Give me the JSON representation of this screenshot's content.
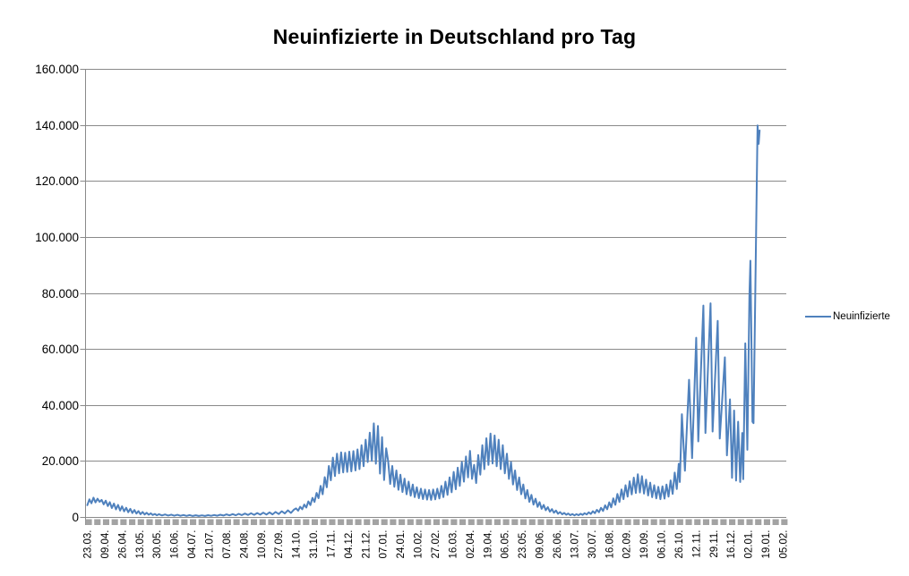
{
  "title": "Neuinfizierte in Deutschland pro Tag",
  "legend": {
    "series_label": "Neuinfizierte"
  },
  "colors": {
    "background": "#FFFFFF",
    "grid": "#8A8A8A",
    "axis": "#8A8A8A",
    "band_tick": "#A3A3A3",
    "series_line": "#4F81BD",
    "text": "#000000"
  },
  "chart_data": {
    "type": "line",
    "title": "Neuinfizierte in Deutschland pro Tag",
    "xlabel": "",
    "ylabel": "",
    "grid": "horizontal",
    "legend_position": "right",
    "ylim": [
      0,
      160000
    ],
    "y_ticks": [
      {
        "value": 0,
        "label": "0"
      },
      {
        "value": 20000,
        "label": "20.000"
      },
      {
        "value": 40000,
        "label": "40.000"
      },
      {
        "value": 60000,
        "label": "60.000"
      },
      {
        "value": 80000,
        "label": "80.000"
      },
      {
        "value": 100000,
        "label": "100.000"
      },
      {
        "value": 120000,
        "label": "120.000"
      },
      {
        "value": 140000,
        "label": "140.000"
      },
      {
        "value": 160000,
        "label": "160.000"
      }
    ],
    "x_label_interval_days": 17,
    "x_span_days": 680,
    "x_tick_labels": [
      "23.03.",
      "09.04.",
      "26.04.",
      "13.05.",
      "30.05.",
      "16.06.",
      "04.07.",
      "21.07.",
      "07.08.",
      "24.08.",
      "10.09.",
      "27.09.",
      "14.10.",
      "31.10.",
      "17.11.",
      "04.12.",
      "21.12.",
      "07.01.",
      "24.01.",
      "10.02.",
      "27.02.",
      "16.03.",
      "02.04.",
      "19.04.",
      "06.05.",
      "23.05.",
      "09.06.",
      "26.06.",
      "13.07.",
      "30.07.",
      "16.08.",
      "02.09.",
      "19.09.",
      "06.10.",
      "26.10.",
      "12.11.",
      "29.11.",
      "16.12.",
      "02.01.",
      "19.01.",
      "05.02."
    ],
    "series": [
      {
        "name": "Neuinfizierte",
        "color": "#4F81BD",
        "points": [
          [
            0,
            4200
          ],
          [
            2,
            6300
          ],
          [
            4,
            4900
          ],
          [
            6,
            6900
          ],
          [
            8,
            5200
          ],
          [
            10,
            6500
          ],
          [
            12,
            5400
          ],
          [
            14,
            6100
          ],
          [
            16,
            4500
          ],
          [
            18,
            5800
          ],
          [
            20,
            3900
          ],
          [
            22,
            5300
          ],
          [
            24,
            3200
          ],
          [
            26,
            4800
          ],
          [
            28,
            2700
          ],
          [
            30,
            4300
          ],
          [
            32,
            2300
          ],
          [
            34,
            3800
          ],
          [
            36,
            2000
          ],
          [
            38,
            3300
          ],
          [
            40,
            1700
          ],
          [
            42,
            2900
          ],
          [
            44,
            1400
          ],
          [
            46,
            2500
          ],
          [
            48,
            1200
          ],
          [
            50,
            2100
          ],
          [
            52,
            1000
          ],
          [
            54,
            1800
          ],
          [
            56,
            900
          ],
          [
            58,
            1500
          ],
          [
            60,
            800
          ],
          [
            62,
            1300
          ],
          [
            64,
            700
          ],
          [
            66,
            1100
          ],
          [
            68,
            600
          ],
          [
            70,
            1000
          ],
          [
            73,
            550
          ],
          [
            76,
            900
          ],
          [
            79,
            500
          ],
          [
            82,
            820
          ],
          [
            85,
            460
          ],
          [
            88,
            760
          ],
          [
            91,
            420
          ],
          [
            94,
            700
          ],
          [
            97,
            390
          ],
          [
            100,
            660
          ],
          [
            103,
            360
          ],
          [
            106,
            620
          ],
          [
            109,
            340
          ],
          [
            112,
            590
          ],
          [
            115,
            360
          ],
          [
            118,
            630
          ],
          [
            121,
            410
          ],
          [
            124,
            710
          ],
          [
            127,
            460
          ],
          [
            130,
            810
          ],
          [
            133,
            520
          ],
          [
            136,
            920
          ],
          [
            139,
            580
          ],
          [
            142,
            1020
          ],
          [
            145,
            620
          ],
          [
            148,
            1120
          ],
          [
            151,
            670
          ],
          [
            154,
            1220
          ],
          [
            157,
            720
          ],
          [
            160,
            1320
          ],
          [
            163,
            770
          ],
          [
            166,
            1420
          ],
          [
            169,
            820
          ],
          [
            172,
            1520
          ],
          [
            175,
            870
          ],
          [
            178,
            1620
          ],
          [
            181,
            930
          ],
          [
            184,
            1800
          ],
          [
            187,
            1050
          ],
          [
            190,
            2050
          ],
          [
            193,
            1250
          ],
          [
            196,
            2350
          ],
          [
            199,
            1450
          ],
          [
            202,
            2650
          ],
          [
            204,
            3050
          ],
          [
            206,
            2250
          ],
          [
            208,
            3650
          ],
          [
            210,
            2750
          ],
          [
            212,
            4450
          ],
          [
            214,
            3350
          ],
          [
            216,
            5550
          ],
          [
            218,
            4250
          ],
          [
            220,
            6850
          ],
          [
            222,
            5350
          ],
          [
            224,
            8600
          ],
          [
            226,
            6700
          ],
          [
            228,
            11100
          ],
          [
            230,
            8100
          ],
          [
            232,
            14200
          ],
          [
            234,
            10600
          ],
          [
            236,
            18200
          ],
          [
            238,
            13100
          ],
          [
            240,
            21200
          ],
          [
            242,
            14600
          ],
          [
            244,
            22600
          ],
          [
            246,
            15600
          ],
          [
            248,
            23100
          ],
          [
            250,
            15900
          ],
          [
            252,
            22900
          ],
          [
            254,
            16100
          ],
          [
            256,
            23300
          ],
          [
            258,
            16300
          ],
          [
            260,
            23500
          ],
          [
            262,
            16600
          ],
          [
            264,
            24100
          ],
          [
            266,
            17100
          ],
          [
            268,
            25600
          ],
          [
            270,
            18100
          ],
          [
            272,
            27600
          ],
          [
            274,
            19600
          ],
          [
            276,
            30100
          ],
          [
            278,
            20000
          ],
          [
            280,
            33400
          ],
          [
            282,
            19000
          ],
          [
            284,
            32500
          ],
          [
            286,
            15500
          ],
          [
            288,
            28500
          ],
          [
            290,
            13200
          ],
          [
            292,
            24500
          ],
          [
            294,
            20000
          ],
          [
            296,
            11800
          ],
          [
            298,
            18200
          ],
          [
            300,
            10800
          ],
          [
            302,
            16600
          ],
          [
            304,
            9700
          ],
          [
            306,
            15100
          ],
          [
            308,
            8900
          ],
          [
            310,
            13700
          ],
          [
            312,
            8100
          ],
          [
            314,
            12600
          ],
          [
            316,
            7600
          ],
          [
            318,
            11600
          ],
          [
            320,
            7100
          ],
          [
            322,
            10600
          ],
          [
            324,
            6700
          ],
          [
            326,
            10100
          ],
          [
            328,
            6400
          ],
          [
            330,
            9800
          ],
          [
            332,
            6200
          ],
          [
            334,
            9600
          ],
          [
            336,
            6100
          ],
          [
            338,
            9800
          ],
          [
            340,
            6300
          ],
          [
            342,
            10100
          ],
          [
            344,
            6600
          ],
          [
            346,
            11100
          ],
          [
            348,
            7100
          ],
          [
            350,
            12600
          ],
          [
            352,
            7900
          ],
          [
            354,
            14100
          ],
          [
            356,
            8800
          ],
          [
            358,
            16100
          ],
          [
            360,
            9900
          ],
          [
            362,
            17600
          ],
          [
            364,
            11100
          ],
          [
            366,
            19600
          ],
          [
            368,
            12600
          ],
          [
            370,
            21600
          ],
          [
            372,
            14100
          ],
          [
            374,
            23600
          ],
          [
            376,
            13600
          ],
          [
            378,
            18600
          ],
          [
            380,
            12100
          ],
          [
            382,
            22100
          ],
          [
            384,
            15100
          ],
          [
            386,
            25600
          ],
          [
            388,
            17100
          ],
          [
            390,
            28100
          ],
          [
            392,
            18600
          ],
          [
            394,
            29800
          ],
          [
            396,
            19100
          ],
          [
            398,
            29100
          ],
          [
            400,
            18100
          ],
          [
            402,
            27600
          ],
          [
            404,
            17100
          ],
          [
            406,
            25600
          ],
          [
            408,
            15600
          ],
          [
            410,
            22600
          ],
          [
            412,
            13600
          ],
          [
            414,
            19600
          ],
          [
            416,
            11600
          ],
          [
            418,
            16600
          ],
          [
            420,
            9600
          ],
          [
            422,
            14100
          ],
          [
            424,
            8100
          ],
          [
            426,
            11600
          ],
          [
            428,
            6600
          ],
          [
            430,
            9600
          ],
          [
            432,
            5400
          ],
          [
            434,
            7900
          ],
          [
            436,
            4400
          ],
          [
            438,
            6500
          ],
          [
            440,
            3600
          ],
          [
            442,
            5300
          ],
          [
            444,
            2900
          ],
          [
            446,
            4300
          ],
          [
            448,
            2400
          ],
          [
            450,
            3500
          ],
          [
            452,
            1900
          ],
          [
            454,
            2800
          ],
          [
            456,
            1500
          ],
          [
            458,
            2300
          ],
          [
            460,
            1150
          ],
          [
            462,
            1750
          ],
          [
            464,
            950
          ],
          [
            466,
            1450
          ],
          [
            468,
            800
          ],
          [
            470,
            1250
          ],
          [
            472,
            650
          ],
          [
            474,
            1050
          ],
          [
            476,
            580
          ],
          [
            478,
            980
          ],
          [
            480,
            630
          ],
          [
            482,
            1150
          ],
          [
            484,
            730
          ],
          [
            486,
            1350
          ],
          [
            488,
            880
          ],
          [
            490,
            1650
          ],
          [
            492,
            1080
          ],
          [
            494,
            2050
          ],
          [
            496,
            1350
          ],
          [
            498,
            2550
          ],
          [
            500,
            1700
          ],
          [
            502,
            3250
          ],
          [
            504,
            2150
          ],
          [
            506,
            4150
          ],
          [
            508,
            2750
          ],
          [
            510,
            5250
          ],
          [
            512,
            3450
          ],
          [
            514,
            6650
          ],
          [
            516,
            4350
          ],
          [
            518,
            8250
          ],
          [
            520,
            5350
          ],
          [
            522,
            9850
          ],
          [
            524,
            6350
          ],
          [
            526,
            11350
          ],
          [
            528,
            7250
          ],
          [
            530,
            12750
          ],
          [
            532,
            8050
          ],
          [
            534,
            14050
          ],
          [
            536,
            8550
          ],
          [
            538,
            15250
          ],
          [
            540,
            8750
          ],
          [
            542,
            14550
          ],
          [
            544,
            8350
          ],
          [
            546,
            13350
          ],
          [
            548,
            7650
          ],
          [
            550,
            12250
          ],
          [
            552,
            7050
          ],
          [
            554,
            11350
          ],
          [
            556,
            6650
          ],
          [
            558,
            10750
          ],
          [
            560,
            6350
          ],
          [
            562,
            10950
          ],
          [
            564,
            6550
          ],
          [
            566,
            11550
          ],
          [
            568,
            7250
          ],
          [
            570,
            13050
          ],
          [
            572,
            8250
          ],
          [
            574,
            15850
          ],
          [
            576,
            9950
          ],
          [
            578,
            19000
          ],
          [
            579,
            12500
          ],
          [
            581,
            36700
          ],
          [
            584,
            16500
          ],
          [
            588,
            49000
          ],
          [
            591,
            21000
          ],
          [
            595,
            64000
          ],
          [
            597,
            27000
          ],
          [
            602,
            75500
          ],
          [
            604,
            30000
          ],
          [
            609,
            76300
          ],
          [
            611,
            30500
          ],
          [
            616,
            70000
          ],
          [
            618,
            28000
          ],
          [
            623,
            57000
          ],
          [
            625,
            22000
          ],
          [
            628,
            42000
          ],
          [
            630,
            14000
          ],
          [
            632,
            38000
          ],
          [
            634,
            13000
          ],
          [
            636,
            34000
          ],
          [
            638,
            12500
          ],
          [
            640,
            30000
          ],
          [
            641,
            13500
          ],
          [
            643,
            62000
          ],
          [
            645,
            24000
          ],
          [
            647,
            79000
          ],
          [
            648,
            91500
          ],
          [
            650,
            34000
          ],
          [
            651,
            33500
          ],
          [
            655,
            139800
          ],
          [
            656,
            133200
          ],
          [
            657,
            138000
          ]
        ]
      }
    ]
  }
}
